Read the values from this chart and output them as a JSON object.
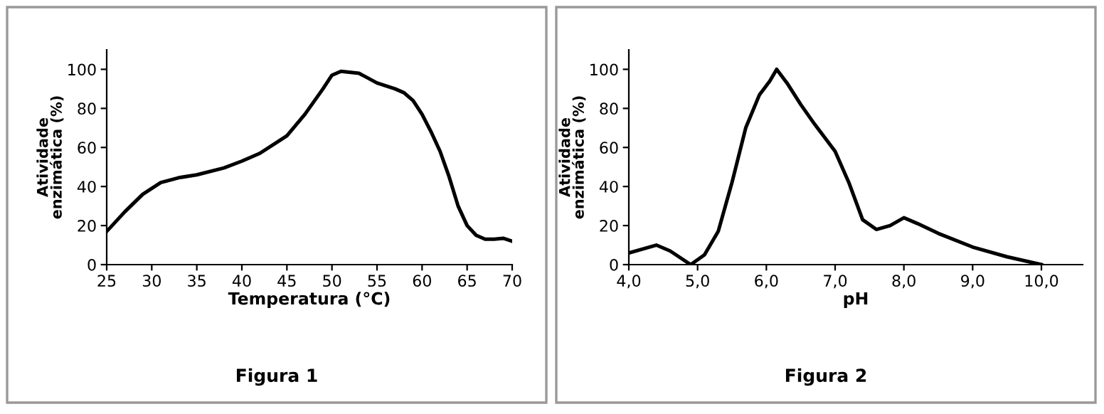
{
  "chart_data": [
    {
      "type": "line",
      "xlabel": "Temperatura (°C)",
      "ylabel": "Atividade\nenzimática (%)",
      "annotations": [
        "Figura 1"
      ],
      "x": [
        25,
        27,
        29,
        31,
        33,
        35,
        38,
        40,
        42,
        44,
        45,
        47,
        49,
        50,
        51,
        53,
        55,
        57,
        58,
        59,
        60,
        61,
        62,
        63,
        64,
        65,
        66,
        67,
        68,
        69,
        70
      ],
      "series": [
        {
          "color": "#000000",
          "values": [
            17,
            27,
            36,
            42,
            44.5,
            46,
            49.5,
            53,
            57,
            63,
            66,
            77,
            90,
            97,
            99,
            98,
            93,
            90,
            88,
            84,
            77,
            68,
            58,
            45,
            30,
            20,
            15,
            13,
            13,
            13.5,
            12
          ]
        }
      ],
      "xlim": [
        25,
        70
      ],
      "xticks": [
        25,
        30,
        35,
        40,
        45,
        50,
        55,
        60,
        65,
        70
      ],
      "ylim": [
        0,
        110
      ],
      "yticks": [
        0,
        20,
        40,
        60,
        80,
        100
      ],
      "grid": false,
      "legend": false,
      "marker": "none",
      "line_style": "solid"
    },
    {
      "type": "line",
      "xlabel": "pH",
      "ylabel": "Atividade\nenzimática (%)",
      "annotations": [
        "Figura 2"
      ],
      "x": [
        4.0,
        4.4,
        4.6,
        4.9,
        5.1,
        5.3,
        5.5,
        5.7,
        5.9,
        6.05,
        6.15,
        6.3,
        6.5,
        6.7,
        7.0,
        7.2,
        7.4,
        7.6,
        7.8,
        8.0,
        8.2,
        8.5,
        9.0,
        9.5,
        10.0
      ],
      "series": [
        {
          "color": "#000000",
          "values": [
            6,
            10,
            7,
            0,
            5,
            17,
            42,
            70,
            87,
            94,
            100,
            93,
            82,
            72,
            58,
            42,
            23,
            18,
            20,
            24,
            21,
            16,
            9,
            4,
            0
          ]
        }
      ],
      "xlim": [
        4.0,
        10.6
      ],
      "xticks": [
        {
          "value": 4,
          "label": "4,0"
        },
        {
          "value": 5,
          "label": "5,0"
        },
        {
          "value": 6,
          "label": "6,0"
        },
        {
          "value": 7,
          "label": "7,0"
        },
        {
          "value": 8,
          "label": "8,0"
        },
        {
          "value": 9,
          "label": "9,0"
        },
        {
          "value": 10,
          "label": "10,0"
        }
      ],
      "ylim": [
        0,
        110
      ],
      "yticks": [
        0,
        20,
        40,
        60,
        80,
        100
      ],
      "grid": false,
      "legend": false,
      "marker": "none",
      "line_style": "solid"
    }
  ]
}
